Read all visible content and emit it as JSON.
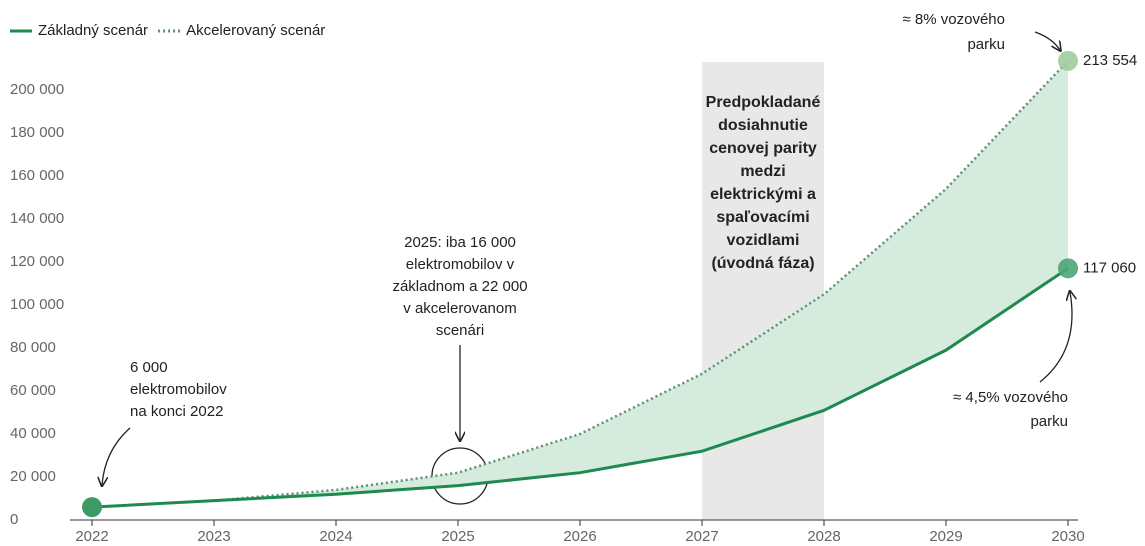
{
  "chart_data": {
    "type": "line",
    "x": [
      2022,
      2023,
      2024,
      2025,
      2026,
      2027,
      2028,
      2029,
      2030
    ],
    "xlim": [
      2022,
      2030
    ],
    "xticks": [
      2022,
      2023,
      2024,
      2025,
      2026,
      2027,
      2028,
      2029,
      2030
    ],
    "ylim": [
      0,
      200000
    ],
    "yticks": [
      0,
      {
        "value": 20000,
        "label": "20 000"
      },
      {
        "value": 40000,
        "label": "40 000"
      },
      {
        "value": 60000,
        "label": "60 000"
      },
      {
        "value": 80000,
        "label": "80 000"
      },
      {
        "value": 100000,
        "label": "100 000"
      },
      {
        "value": 120000,
        "label": "120 000"
      },
      {
        "value": 140000,
        "label": "140 000"
      },
      {
        "value": 160000,
        "label": "160 000"
      },
      {
        "value": 180000,
        "label": "180 000"
      },
      {
        "value": 200000,
        "label": "200 000"
      }
    ],
    "series": [
      {
        "name": "Základný scenár",
        "color": "#1e8a4f",
        "style": "solid",
        "values": [
          6000,
          9000,
          12000,
          16000,
          22000,
          32000,
          51000,
          79000,
          117060
        ],
        "value_labels": [
          null,
          null,
          null,
          null,
          null,
          null,
          null,
          null,
          "117 060"
        ]
      },
      {
        "name": "Akcelerovaný scenár",
        "color": "#5d8f70",
        "style": "dotted",
        "values": [
          6000,
          9000,
          14000,
          22000,
          40000,
          68000,
          105000,
          154000,
          213554
        ],
        "value_labels": [
          null,
          null,
          null,
          null,
          null,
          null,
          null,
          null,
          "213 554"
        ]
      }
    ],
    "area_color": "#d4ebdd",
    "band": {
      "from": 2027,
      "to": 2028,
      "color": "#e8e8e8",
      "label": [
        "Predpokladané",
        "dosiahnutie",
        "cenovej parity",
        "medzi",
        "elektrickými a",
        "spaľovacími",
        "vozidlami",
        "(úvodná fáza)"
      ]
    },
    "annotations": [
      [
        "6 000",
        "elektromobilov",
        "na konci 2022"
      ],
      [
        "2025: iba 16 000",
        "elektromobilov v",
        "základnom a 22 000",
        "v akcelerovanom",
        "scenári"
      ],
      [
        "≈ 8% vozového",
        "parku"
      ],
      [
        "≈ 4,5% vozového",
        "parku"
      ]
    ]
  }
}
